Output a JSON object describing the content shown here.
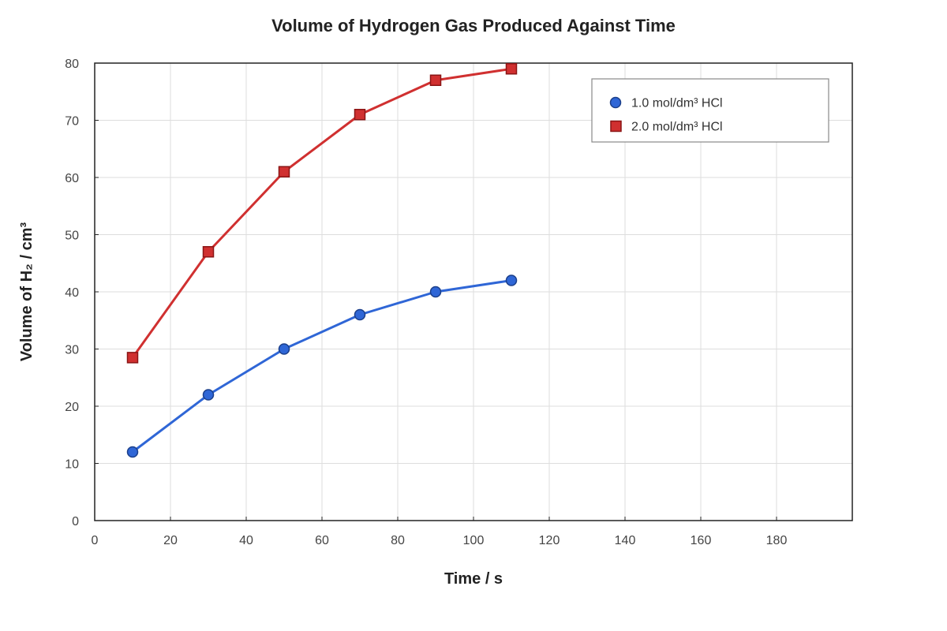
{
  "chart_data": {
    "type": "line",
    "title": "Volume of Hydrogen Gas Produced Against Time",
    "xlabel": "Time / s",
    "ylabel": "Volume of H₂ / cm³",
    "xlim": [
      0,
      200
    ],
    "ylim": [
      0,
      80
    ],
    "x_ticks": [
      0,
      20,
      40,
      60,
      80,
      100,
      120,
      140,
      160,
      180
    ],
    "y_ticks": [
      0,
      10,
      20,
      30,
      40,
      50,
      60,
      70,
      80
    ],
    "grid": true,
    "legend_position": "top-right",
    "series": [
      {
        "name": "1.0 mol/dm³ HCl",
        "marker": "circle",
        "color": "#2f66d6",
        "x": [
          10,
          30,
          50,
          70,
          90,
          110
        ],
        "y": [
          12,
          22,
          30,
          36,
          40,
          42
        ]
      },
      {
        "name": "2.0 mol/dm³ HCl",
        "marker": "square",
        "color": "#d03030",
        "x": [
          10,
          30,
          50,
          70,
          90,
          110
        ],
        "y": [
          28.5,
          47,
          61,
          71,
          77,
          79
        ]
      }
    ]
  }
}
